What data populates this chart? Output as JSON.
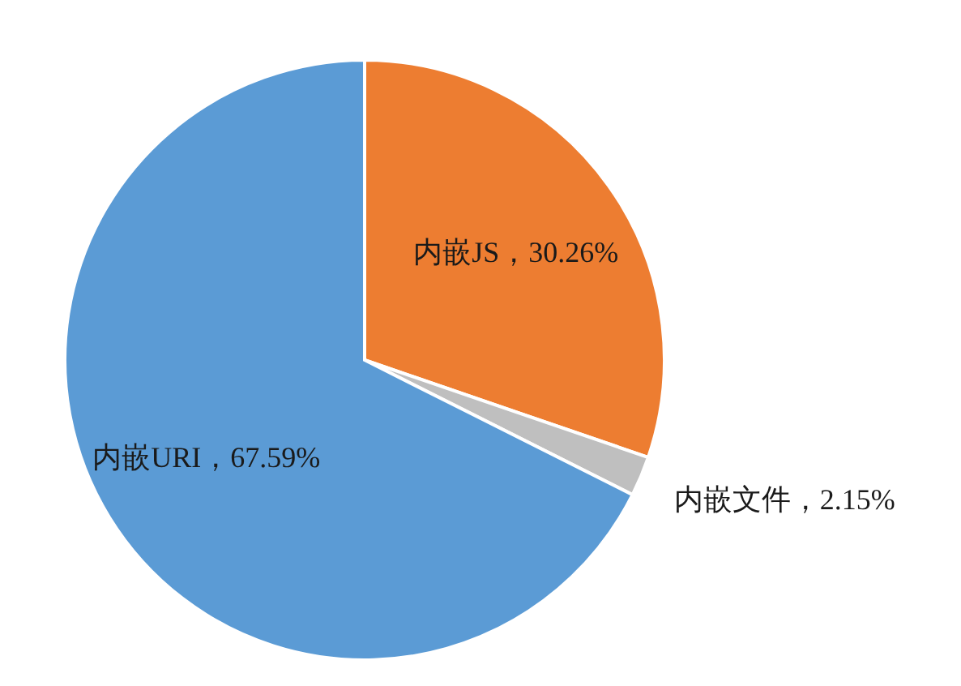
{
  "chart_data": {
    "type": "pie",
    "categories": [
      "内嵌JS",
      "内嵌文件",
      "内嵌URI"
    ],
    "values": [
      30.26,
      2.15,
      67.59
    ],
    "value_labels": [
      "30.26%",
      "2.15%",
      "67.59%"
    ],
    "colors": [
      "#ed7d31",
      "#bfbfbf",
      "#5b9bd5"
    ],
    "legend": false
  }
}
